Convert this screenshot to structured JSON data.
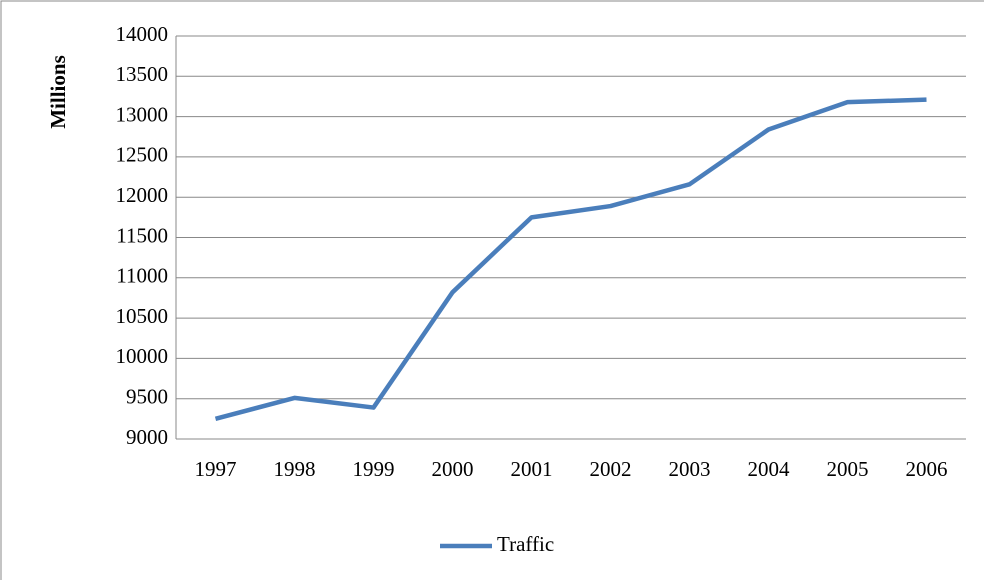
{
  "chart_data": {
    "type": "line",
    "y_label": "Millions",
    "categories": [
      "1997",
      "1998",
      "1999",
      "2000",
      "2001",
      "2002",
      "2003",
      "2004",
      "2005",
      "2006"
    ],
    "series": [
      {
        "name": "Traffic",
        "color": "#4a7ebb",
        "values": [
          9250,
          9510,
          9390,
          10820,
          11750,
          11890,
          12160,
          12840,
          13180,
          13210
        ]
      }
    ],
    "ylim": [
      9000,
      14000
    ],
    "yticks": [
      9000,
      9500,
      10000,
      10500,
      11000,
      11500,
      12000,
      12500,
      13000,
      13500,
      14000
    ],
    "grid": true,
    "legend": "bottom"
  }
}
